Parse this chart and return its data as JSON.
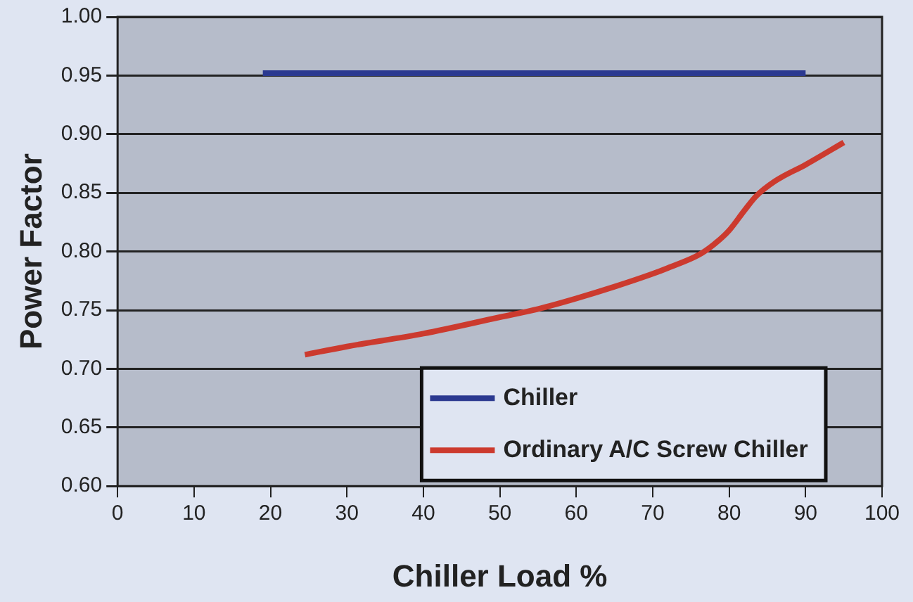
{
  "chart_data": {
    "type": "line",
    "xlabel": "Chiller Load %",
    "ylabel": "Power Factor",
    "xlim": [
      0,
      100
    ],
    "xticks": [
      0,
      10,
      20,
      30,
      40,
      50,
      60,
      70,
      80,
      90,
      100
    ],
    "ylim": [
      0.6,
      1.0
    ],
    "yticks": [
      {
        "value": 0.6,
        "label": "0.60"
      },
      {
        "value": 0.65,
        "label": "0.65"
      },
      {
        "value": 0.7,
        "label": "0.70"
      },
      {
        "value": 0.75,
        "label": "0.75"
      },
      {
        "value": 0.8,
        "label": "0.80"
      },
      {
        "value": 0.85,
        "label": "0.85"
      },
      {
        "value": 0.9,
        "label": "0.90"
      },
      {
        "value": 0.95,
        "label": "0.95"
      },
      {
        "value": 1.0,
        "label": "1.00"
      }
    ],
    "grid": "y",
    "legend": "bottom right",
    "marker": "none",
    "line_style": "solid",
    "series": [
      {
        "name": "Chiller",
        "color": "#2b3990",
        "x": [
          19,
          90
        ],
        "values": [
          0.952,
          0.952
        ]
      },
      {
        "name": "Ordinary A/C Screw Chiller",
        "color": "#cc3a2e",
        "x": [
          24.5,
          30,
          40,
          50,
          55,
          60,
          65,
          70,
          72,
          76,
          78,
          80,
          82,
          83.5,
          86,
          90,
          95
        ],
        "values": [
          0.712,
          0.719,
          0.73,
          0.744,
          0.751,
          0.76,
          0.77,
          0.781,
          0.786,
          0.797,
          0.806,
          0.818,
          0.835,
          0.847,
          0.86,
          0.874,
          0.893
        ]
      }
    ]
  }
}
